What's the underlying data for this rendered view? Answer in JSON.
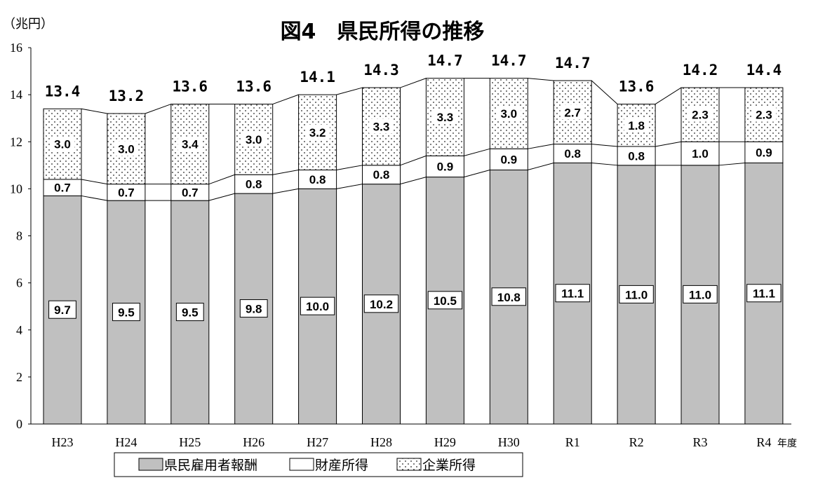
{
  "chart_data": {
    "type": "bar",
    "stacked": true,
    "title": "図4　県民所得の推移",
    "ylabel": "（兆円）",
    "xlabel": "年度",
    "ylim": [
      0,
      16
    ],
    "yticks": [
      0,
      2,
      4,
      6,
      8,
      10,
      12,
      14,
      16
    ],
    "grid": false,
    "legend_position": "bottom",
    "categories": [
      "H23",
      "H24",
      "H25",
      "H26",
      "H27",
      "H28",
      "H29",
      "H30",
      "R1",
      "R2",
      "R3",
      "R4"
    ],
    "totals": [
      "13.4",
      "13.2",
      "13.6",
      "13.6",
      "14.1",
      "14.3",
      "14.7",
      "14.7",
      "14.7",
      "13.6",
      "14.2",
      "14.4"
    ],
    "series": [
      {
        "name": "県民雇用者報酬",
        "color": "#c0c0c0",
        "pattern": "solid-gray",
        "values": [
          9.7,
          9.5,
          9.5,
          9.8,
          10.0,
          10.2,
          10.5,
          10.8,
          11.1,
          11.0,
          11.0,
          11.1
        ],
        "labels": [
          "9.7",
          "9.5",
          "9.5",
          "9.8",
          "10.0",
          "10.2",
          "10.5",
          "10.8",
          "11.1",
          "11.0",
          "11.0",
          "11.1"
        ]
      },
      {
        "name": "財産所得",
        "color": "#ffffff",
        "pattern": "white",
        "values": [
          0.7,
          0.7,
          0.7,
          0.8,
          0.8,
          0.8,
          0.9,
          0.9,
          0.8,
          0.8,
          1.0,
          0.9
        ],
        "labels": [
          "0.7",
          "0.7",
          "0.7",
          "0.8",
          "0.8",
          "0.8",
          "0.9",
          "0.9",
          "0.8",
          "0.8",
          "1.0",
          "0.9"
        ]
      },
      {
        "name": "企業所得",
        "color": "#ffffff",
        "pattern": "dotted",
        "values": [
          3.0,
          3.0,
          3.4,
          3.0,
          3.2,
          3.3,
          3.3,
          3.0,
          2.7,
          1.8,
          2.3,
          2.3
        ],
        "labels": [
          "3.0",
          "3.0",
          "3.4",
          "3.0",
          "3.2",
          "3.3",
          "3.3",
          "3.0",
          "2.7",
          "1.8",
          "2.3",
          "2.3"
        ]
      }
    ]
  }
}
